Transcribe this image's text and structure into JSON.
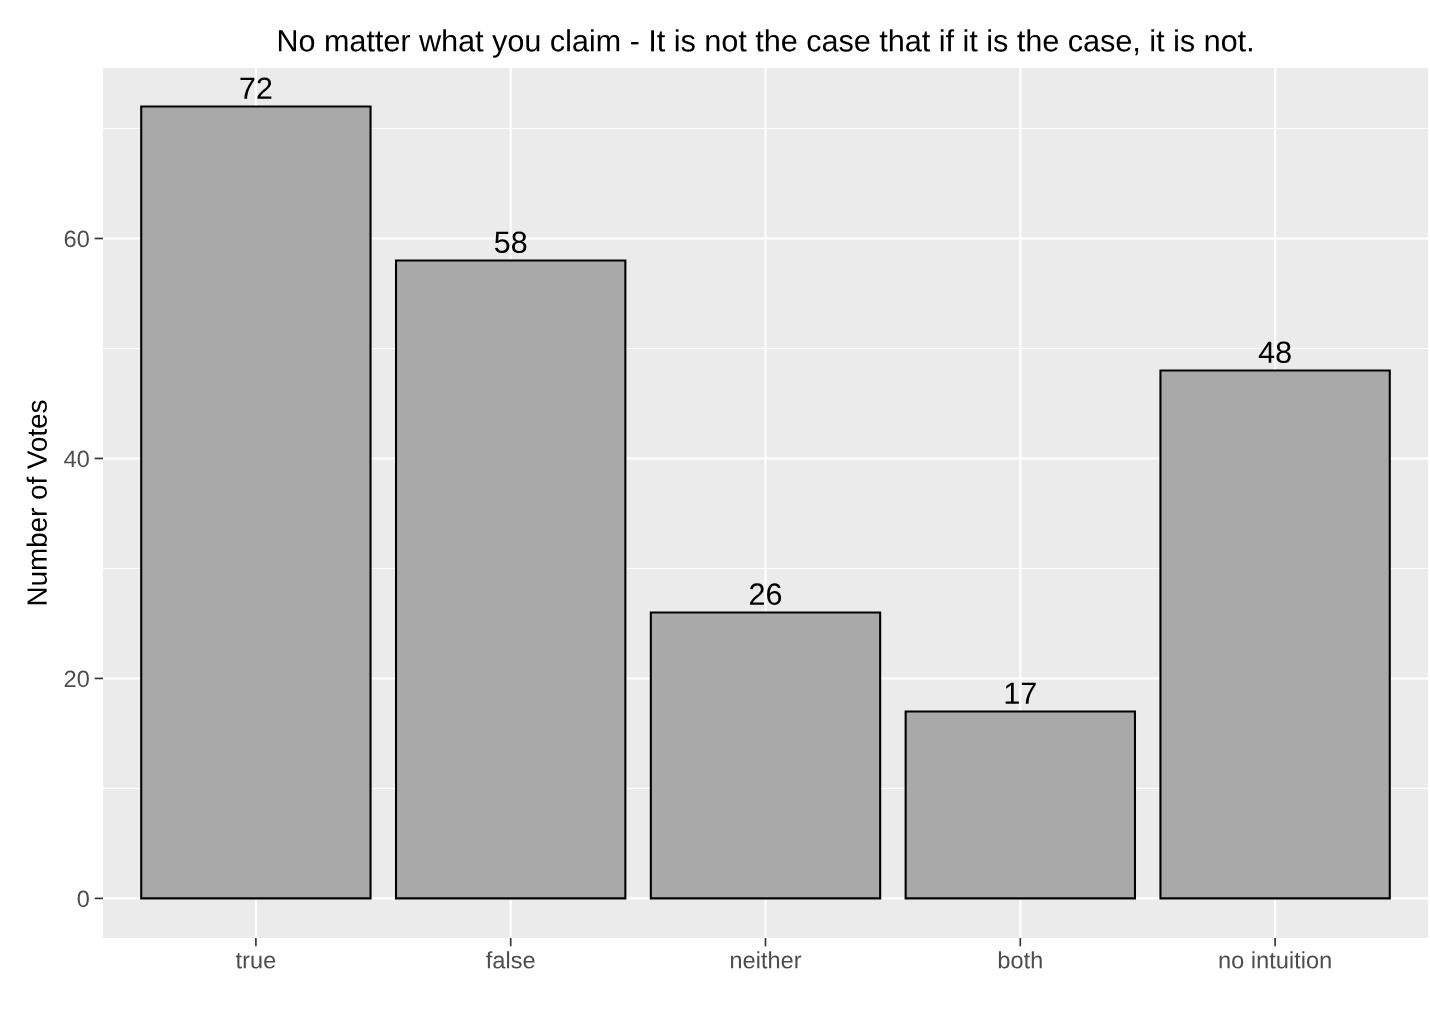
{
  "chart_data": {
    "type": "bar",
    "title": "No matter what you claim - It is not the case that if it is the case, it is not.",
    "ylabel": "Number of Votes",
    "categories": [
      "true",
      "false",
      "neither",
      "both",
      "no intuition"
    ],
    "values": [
      72,
      58,
      26,
      17,
      48
    ],
    "color": "#a9a9a9",
    "ylim": [
      -3.6,
      75.5
    ],
    "yticks": [
      0,
      20,
      40,
      60
    ],
    "grid": true,
    "data_labels": true
  }
}
